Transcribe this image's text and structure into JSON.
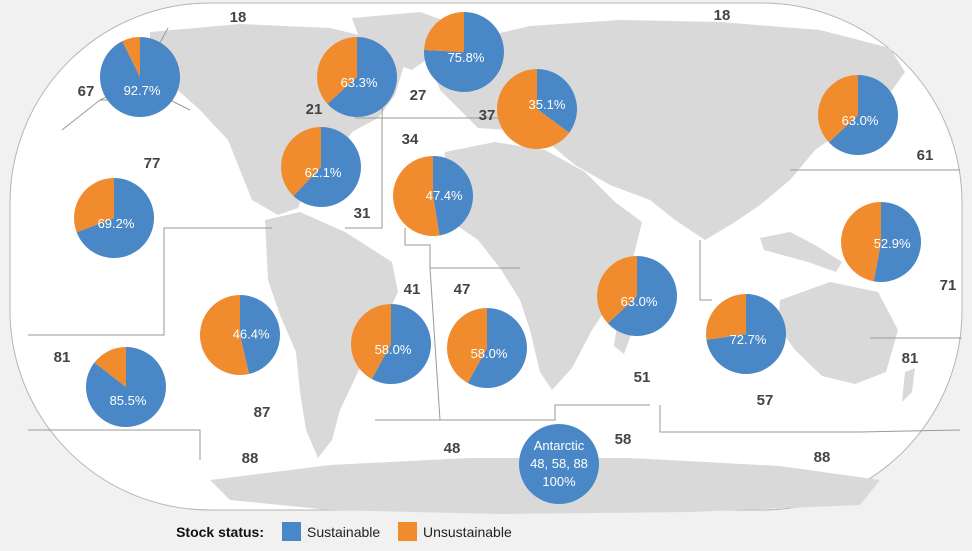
{
  "colors": {
    "sustainable": "#4a87c6",
    "unsustainable": "#f08c2e",
    "land": "#d9d9d9",
    "ocean": "#ffffff",
    "background": "#f1f1f1",
    "borders": "#9a9a9a"
  },
  "legend": {
    "title": "Stock status:",
    "items": [
      {
        "label": "Sustainable",
        "color": "#4a87c6"
      },
      {
        "label": "Unsustainable",
        "color": "#f08c2e"
      }
    ]
  },
  "area_labels": [
    "18",
    "18",
    "67",
    "21",
    "27",
    "37",
    "34",
    "77",
    "31",
    "61",
    "41",
    "47",
    "71",
    "81",
    "51",
    "81",
    "87",
    "57",
    "88",
    "48",
    "58",
    "88"
  ],
  "chart_data": {
    "type": "pie",
    "series": [
      {
        "label": "92.7%",
        "sustainable_pct": 92.7
      },
      {
        "label": "63.3%",
        "sustainable_pct": 63.3
      },
      {
        "label": "75.8%",
        "sustainable_pct": 75.8
      },
      {
        "label": "35.1%",
        "sustainable_pct": 35.1
      },
      {
        "label": "63.0%",
        "sustainable_pct": 63.0
      },
      {
        "label": "62.1%",
        "sustainable_pct": 62.1
      },
      {
        "label": "47.4%",
        "sustainable_pct": 47.4
      },
      {
        "label": "69.2%",
        "sustainable_pct": 69.2
      },
      {
        "label": "52.9%",
        "sustainable_pct": 52.9
      },
      {
        "label": "46.4%",
        "sustainable_pct": 46.4
      },
      {
        "label": "58.0%",
        "sustainable_pct": 58.0
      },
      {
        "label": "58.0%",
        "sustainable_pct": 58.0
      },
      {
        "label": "63.0%",
        "sustainable_pct": 63.0
      },
      {
        "label": "72.7%",
        "sustainable_pct": 72.7
      },
      {
        "label": "85.5%",
        "sustainable_pct": 85.5
      }
    ],
    "antarctic": {
      "lines": [
        "Antarctic",
        "48, 58, 88",
        "100%"
      ],
      "sustainable_pct": 100
    }
  }
}
